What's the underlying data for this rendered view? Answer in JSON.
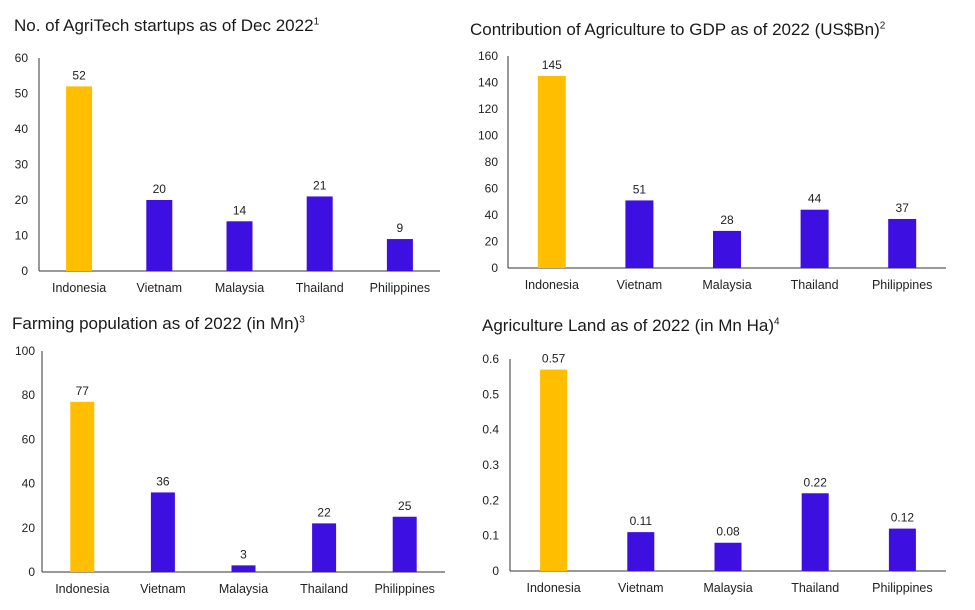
{
  "colors": {
    "highlight": "#FFBE00",
    "bar": "#3D0FE0"
  },
  "chart_data": [
    {
      "type": "bar",
      "title": "No. of AgriTech startups as of Dec 2022",
      "footnote": "1",
      "categories": [
        "Indonesia",
        "Vietnam",
        "Malaysia",
        "Thailand",
        "Philippines"
      ],
      "values": [
        52,
        20,
        14,
        21,
        9
      ],
      "labels": [
        "52",
        "20",
        "14",
        "21",
        "9"
      ],
      "yticks": [
        0,
        10,
        20,
        30,
        40,
        50,
        60
      ],
      "ylim": [
        0,
        60
      ],
      "highlight_index": 0,
      "xlabel": "",
      "ylabel": ""
    },
    {
      "type": "bar",
      "title": "Contribution of Agriculture to GDP as of 2022 (US$Bn)",
      "footnote": "2",
      "categories": [
        "Indonesia",
        "Vietnam",
        "Malaysia",
        "Thailand",
        "Philippines"
      ],
      "values": [
        145,
        51,
        28,
        44,
        37
      ],
      "labels": [
        "145",
        "51",
        "28",
        "44",
        "37"
      ],
      "yticks": [
        0,
        20,
        40,
        60,
        80,
        100,
        120,
        140,
        160
      ],
      "ylim": [
        0,
        160
      ],
      "highlight_index": 0,
      "xlabel": "",
      "ylabel": ""
    },
    {
      "type": "bar",
      "title": "Farming population as of 2022 (in Mn)",
      "footnote": "3",
      "categories": [
        "Indonesia",
        "Vietnam",
        "Malaysia",
        "Thailand",
        "Philippines"
      ],
      "values": [
        77,
        36,
        3,
        22,
        25
      ],
      "labels": [
        "77",
        "36",
        "3",
        "22",
        "25"
      ],
      "yticks": [
        0,
        20,
        40,
        60,
        80,
        100
      ],
      "ylim": [
        0,
        100
      ],
      "highlight_index": 0,
      "xlabel": "",
      "ylabel": ""
    },
    {
      "type": "bar",
      "title": "Agriculture Land as of 2022 (in Mn Ha)",
      "footnote": "4",
      "categories": [
        "Indonesia",
        "Vietnam",
        "Malaysia",
        "Thailand",
        "Philippines"
      ],
      "values": [
        0.57,
        0.11,
        0.08,
        0.22,
        0.12
      ],
      "labels": [
        "0.57",
        "0.11",
        "0.08",
        "0.22",
        "0.12"
      ],
      "yticks": [
        0,
        0.1,
        0.2,
        0.3,
        0.4,
        0.5,
        0.6
      ],
      "ytick_labels": [
        "0",
        "0.1",
        "0.2",
        "0.3",
        "0.4",
        "0.5",
        "0.6"
      ],
      "ylim": [
        0,
        0.6
      ],
      "highlight_index": 0,
      "xlabel": "",
      "ylabel": ""
    }
  ]
}
